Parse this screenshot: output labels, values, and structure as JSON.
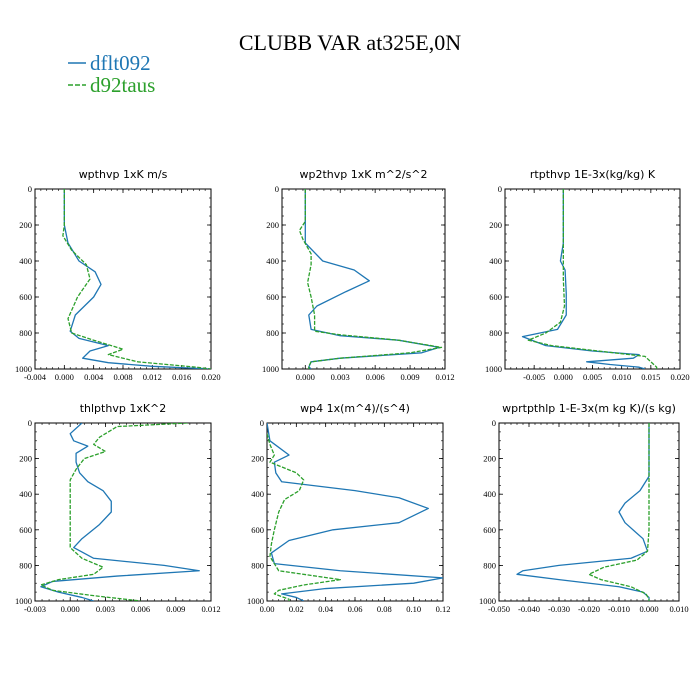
{
  "figure": {
    "title": "CLUBB VAR at325E,0N",
    "legend": [
      {
        "name": "dflt092",
        "color": "#1f77b4",
        "dash": "solid"
      },
      {
        "name": "d92taus",
        "color": "#2ca02c",
        "dash": "dashed"
      }
    ]
  },
  "chart_data": [
    {
      "type": "line",
      "title": "wpthvp  1xK m/s",
      "xlim": [
        -0.004,
        0.02
      ],
      "xticks": [
        "-0.004",
        "0.000",
        "0.004",
        "0.008",
        "0.012",
        "0.016",
        "0.020"
      ],
      "ylim": [
        1000,
        0
      ],
      "yticks": [
        "0",
        "200",
        "400",
        "600",
        "800",
        "1000"
      ],
      "series": [
        {
          "name": "dflt092",
          "points": [
            [
              0.0,
              0
            ],
            [
              0.0,
              100
            ],
            [
              0.0,
              200
            ],
            [
              0.0005,
              300
            ],
            [
              0.002,
              400
            ],
            [
              0.0042,
              460
            ],
            [
              0.005,
              530
            ],
            [
              0.004,
              600
            ],
            [
              0.0015,
              700
            ],
            [
              0.0008,
              790
            ],
            [
              0.002,
              830
            ],
            [
              0.006,
              870
            ],
            [
              0.0035,
              900
            ],
            [
              0.0025,
              940
            ],
            [
              0.006,
              965
            ],
            [
              0.012,
              985
            ],
            [
              0.02,
              1000
            ]
          ]
        },
        {
          "name": "d92taus",
          "points": [
            [
              0.0,
              0
            ],
            [
              0.0,
              100
            ],
            [
              0.0,
              200
            ],
            [
              -0.0002,
              260
            ],
            [
              0.001,
              340
            ],
            [
              0.003,
              420
            ],
            [
              0.0035,
              500
            ],
            [
              0.0018,
              600
            ],
            [
              0.0005,
              720
            ],
            [
              0.001,
              800
            ],
            [
              0.004,
              840
            ],
            [
              0.008,
              890
            ],
            [
              0.006,
              920
            ],
            [
              0.01,
              960
            ],
            [
              0.018,
              990
            ],
            [
              0.02,
              1000
            ]
          ]
        }
      ]
    },
    {
      "type": "line",
      "title": "wp2thvp  1xK m^2/s^2",
      "xlim": [
        -0.002,
        0.012
      ],
      "xticks": [
        "0.000",
        "0.003",
        "0.006",
        "0.009",
        "0.012"
      ],
      "ylim": [
        1000,
        0
      ],
      "yticks": [
        "0",
        "200",
        "400",
        "600",
        "800",
        "1000"
      ],
      "series": [
        {
          "name": "dflt092",
          "points": [
            [
              0.0,
              0
            ],
            [
              0.0,
              200
            ],
            [
              0.0,
              300
            ],
            [
              0.0015,
              400
            ],
            [
              0.0042,
              450
            ],
            [
              0.0055,
              510
            ],
            [
              0.0035,
              570
            ],
            [
              0.001,
              650
            ],
            [
              0.0003,
              700
            ],
            [
              0.0005,
              780
            ],
            [
              0.003,
              815
            ],
            [
              0.008,
              840
            ],
            [
              0.0115,
              880
            ],
            [
              0.01,
              910
            ],
            [
              0.003,
              940
            ],
            [
              0.0005,
              960
            ],
            [
              0.0003,
              990
            ],
            [
              0.0005,
              1000
            ]
          ]
        },
        {
          "name": "d92taus",
          "points": [
            [
              0.0,
              0
            ],
            [
              0.0,
              180
            ],
            [
              -0.0005,
              230
            ],
            [
              -0.0002,
              280
            ],
            [
              0.0005,
              360
            ],
            [
              0.0005,
              420
            ],
            [
              0.0002,
              520
            ],
            [
              0.0005,
              600
            ],
            [
              0.0008,
              700
            ],
            [
              0.0008,
              790
            ],
            [
              0.003,
              810
            ],
            [
              0.008,
              840
            ],
            [
              0.0117,
              880
            ],
            [
              0.009,
              910
            ],
            [
              0.003,
              940
            ],
            [
              0.0005,
              960
            ],
            [
              0.0003,
              985
            ],
            [
              0.0003,
              1000
            ]
          ]
        }
      ]
    },
    {
      "type": "line",
      "title": "rtpthvp  1E-3x(kg/kg) K",
      "xlim": [
        -0.01,
        0.02
      ],
      "xticks": [
        "-0.005",
        "0.000",
        "0.005",
        "0.010",
        "0.015",
        "0.020"
      ],
      "ylim": [
        1000,
        0
      ],
      "yticks": [
        "0",
        "200",
        "400",
        "600",
        "800",
        "1000"
      ],
      "series": [
        {
          "name": "dflt092",
          "points": [
            [
              0.0,
              0
            ],
            [
              0.0,
              300
            ],
            [
              -0.0005,
              400
            ],
            [
              0.0003,
              450
            ],
            [
              0.0005,
              580
            ],
            [
              0.0005,
              700
            ],
            [
              -0.001,
              780
            ],
            [
              -0.007,
              820
            ],
            [
              -0.003,
              870
            ],
            [
              0.005,
              900
            ],
            [
              0.013,
              920
            ],
            [
              0.012,
              940
            ],
            [
              0.004,
              960
            ],
            [
              0.008,
              975
            ],
            [
              0.013,
              990
            ],
            [
              0.014,
              1000
            ]
          ]
        },
        {
          "name": "d92taus",
          "points": [
            [
              0.0,
              0
            ],
            [
              0.0,
              300
            ],
            [
              0.0,
              400
            ],
            [
              0.0,
              500
            ],
            [
              0.0002,
              650
            ],
            [
              -0.0005,
              740
            ],
            [
              -0.003,
              800
            ],
            [
              -0.006,
              840
            ],
            [
              -0.002,
              870
            ],
            [
              0.006,
              900
            ],
            [
              0.014,
              930
            ],
            [
              0.015,
              960
            ],
            [
              0.016,
              990
            ],
            [
              0.016,
              1000
            ]
          ]
        }
      ]
    },
    {
      "type": "line",
      "title": "thlpthvp  1xK^2",
      "xlim": [
        -0.003,
        0.012
      ],
      "xticks": [
        "-0.003",
        "0.000",
        "0.003",
        "0.006",
        "0.009",
        "0.012"
      ],
      "ylim": [
        1000,
        0
      ],
      "yticks": [
        "0",
        "200",
        "400",
        "600",
        "800",
        "1000"
      ],
      "series": [
        {
          "name": "dflt092",
          "points": [
            [
              0.001,
              0
            ],
            [
              0.0,
              60
            ],
            [
              0.0003,
              100
            ],
            [
              0.0015,
              130
            ],
            [
              0.0005,
              170
            ],
            [
              0.0005,
              220
            ],
            [
              0.0008,
              280
            ],
            [
              0.0015,
              330
            ],
            [
              0.0028,
              380
            ],
            [
              0.0035,
              440
            ],
            [
              0.0035,
              500
            ],
            [
              0.0025,
              570
            ],
            [
              0.001,
              650
            ],
            [
              0.0003,
              700
            ],
            [
              0.002,
              760
            ],
            [
              0.008,
              800
            ],
            [
              0.011,
              830
            ],
            [
              0.004,
              860
            ],
            [
              -0.0015,
              890
            ],
            [
              -0.0025,
              920
            ],
            [
              -0.001,
              950
            ],
            [
              0.001,
              980
            ],
            [
              0.002,
              1000
            ]
          ]
        },
        {
          "name": "d92taus",
          "points": [
            [
              0.01,
              0
            ],
            [
              0.004,
              20
            ],
            [
              0.0025,
              80
            ],
            [
              0.002,
              120
            ],
            [
              0.003,
              160
            ],
            [
              0.0012,
              200
            ],
            [
              0.0005,
              260
            ],
            [
              0.0,
              320
            ],
            [
              0.0,
              400
            ],
            [
              0.0,
              500
            ],
            [
              0.0,
              600
            ],
            [
              0.0,
              700
            ],
            [
              0.001,
              760
            ],
            [
              0.0028,
              810
            ],
            [
              0.002,
              850
            ],
            [
              -0.001,
              880
            ],
            [
              -0.0025,
              910
            ],
            [
              -0.0015,
              940
            ],
            [
              0.002,
              970
            ],
            [
              0.006,
              1000
            ]
          ]
        }
      ]
    },
    {
      "type": "line",
      "title": "wp4  1x(m^4)/(s^4)",
      "xlim": [
        0,
        0.12
      ],
      "xticks": [
        "0.00",
        "0.02",
        "0.04",
        "0.06",
        "0.08",
        "0.10",
        "0.12"
      ],
      "ylim": [
        1000,
        0
      ],
      "yticks": [
        "0",
        "200",
        "400",
        "600",
        "800",
        "1000"
      ],
      "series": [
        {
          "name": "dflt092",
          "points": [
            [
              0.0,
              0
            ],
            [
              0.002,
              100
            ],
            [
              0.015,
              180
            ],
            [
              0.005,
              220
            ],
            [
              0.006,
              280
            ],
            [
              0.01,
              330
            ],
            [
              0.06,
              380
            ],
            [
              0.09,
              420
            ],
            [
              0.11,
              480
            ],
            [
              0.09,
              560
            ],
            [
              0.045,
              600
            ],
            [
              0.015,
              660
            ],
            [
              0.003,
              730
            ],
            [
              0.005,
              790
            ],
            [
              0.05,
              830
            ],
            [
              0.12,
              870
            ],
            [
              0.1,
              900
            ],
            [
              0.04,
              930
            ],
            [
              0.01,
              960
            ],
            [
              0.02,
              980
            ],
            [
              0.025,
              1000
            ]
          ]
        },
        {
          "name": "d92taus",
          "points": [
            [
              0.0,
              60
            ],
            [
              0.002,
              120
            ],
            [
              0.005,
              180
            ],
            [
              0.002,
              220
            ],
            [
              0.008,
              240
            ],
            [
              0.02,
              280
            ],
            [
              0.025,
              320
            ],
            [
              0.022,
              380
            ],
            [
              0.012,
              430
            ],
            [
              0.008,
              500
            ],
            [
              0.005,
              600
            ],
            [
              0.003,
              680
            ],
            [
              0.002,
              750
            ],
            [
              0.008,
              830
            ],
            [
              0.05,
              880
            ],
            [
              0.025,
              910
            ],
            [
              0.008,
              940
            ],
            [
              0.005,
              960
            ],
            [
              0.015,
              990
            ],
            [
              0.015,
              1000
            ]
          ]
        }
      ]
    },
    {
      "type": "line",
      "title": "wprtpthlp  1-E-3x(m kg K)/(s kg)",
      "xlim": [
        -0.05,
        0.01
      ],
      "xticks": [
        "-0.050",
        "-0.040",
        "-0.030",
        "-0.020",
        "-0.010",
        "0.000",
        "0.010"
      ],
      "ylim": [
        1000,
        0
      ],
      "yticks": [
        "0",
        "200",
        "400",
        "600",
        "800",
        "1000"
      ],
      "series": [
        {
          "name": "dflt092",
          "points": [
            [
              0.0,
              0
            ],
            [
              0.0,
              300
            ],
            [
              -0.003,
              380
            ],
            [
              -0.008,
              450
            ],
            [
              -0.01,
              500
            ],
            [
              -0.008,
              560
            ],
            [
              -0.002,
              650
            ],
            [
              -0.0005,
              720
            ],
            [
              -0.006,
              760
            ],
            [
              -0.03,
              800
            ],
            [
              -0.042,
              830
            ],
            [
              -0.044,
              850
            ],
            [
              -0.03,
              880
            ],
            [
              -0.01,
              920
            ],
            [
              -0.002,
              950
            ],
            [
              0.0,
              980
            ],
            [
              0.0,
              1000
            ]
          ]
        },
        {
          "name": "d92taus",
          "points": [
            [
              0.0,
              0
            ],
            [
              0.0,
              400
            ],
            [
              0.0,
              600
            ],
            [
              -0.0005,
              720
            ],
            [
              -0.004,
              770
            ],
            [
              -0.015,
              810
            ],
            [
              -0.02,
              850
            ],
            [
              -0.016,
              880
            ],
            [
              -0.006,
              920
            ],
            [
              -0.001,
              960
            ],
            [
              0.0,
              990
            ],
            [
              0.0,
              1000
            ]
          ]
        }
      ]
    }
  ]
}
